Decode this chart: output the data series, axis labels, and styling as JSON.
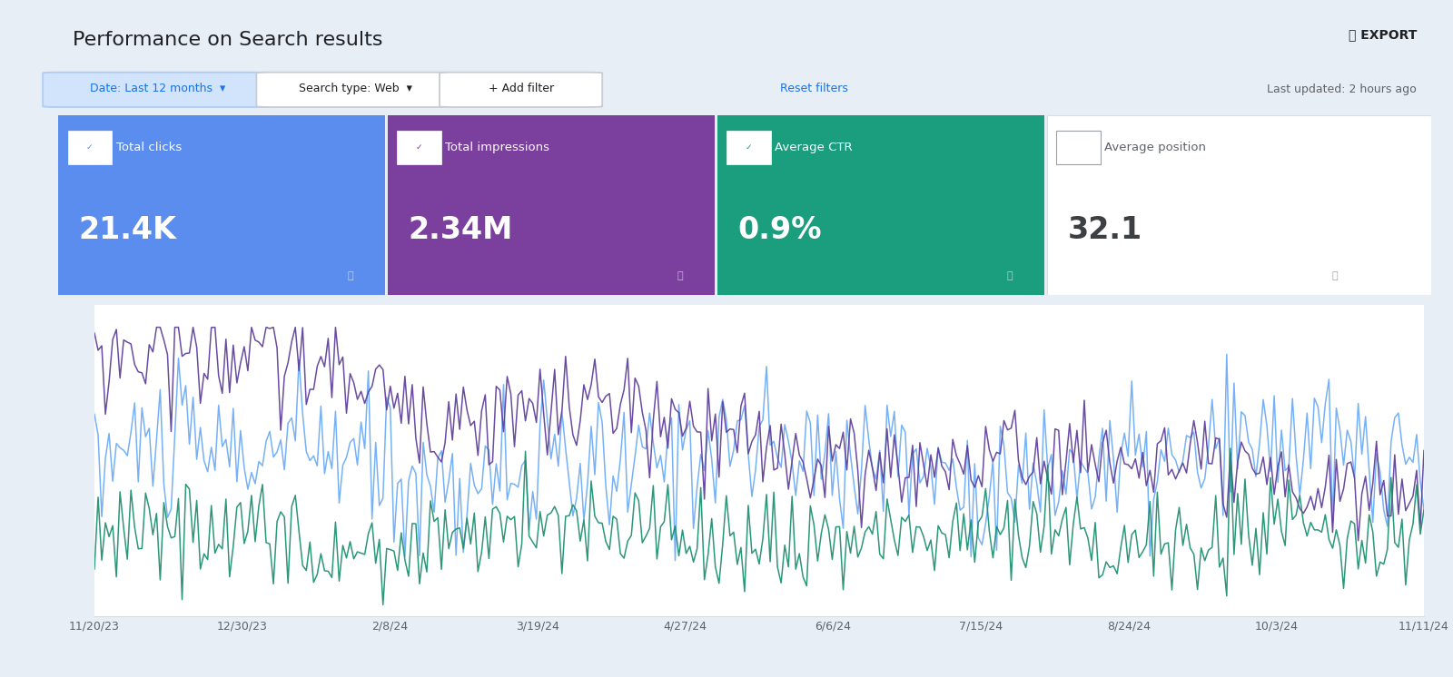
{
  "title": "Performance on Search results",
  "export_label": "⤓ EXPORT",
  "last_updated": "Last updated: 2 hours ago",
  "metrics": [
    {
      "label": "Total clicks",
      "value": "21.4K",
      "color": "#5b8dee",
      "checked": true
    },
    {
      "label": "Total impressions",
      "value": "2.34M",
      "color": "#7b3f9e",
      "checked": true
    },
    {
      "label": "Average CTR",
      "value": "0.9%",
      "color": "#1a9e7e",
      "checked": true
    },
    {
      "label": "Average position",
      "value": "32.1",
      "color": "#f8f9fa",
      "checked": false
    }
  ],
  "line_colors": [
    "#6aabf7",
    "#5c3d99",
    "#1a8e6e"
  ],
  "x_labels": [
    "11/20/23",
    "12/30/23",
    "2/8/24",
    "3/19/24",
    "4/27/24",
    "6/6/24",
    "7/15/24",
    "8/24/24",
    "10/3/24",
    "11/11/24"
  ],
  "bg_color": "#e8eef5",
  "n_points": 365
}
